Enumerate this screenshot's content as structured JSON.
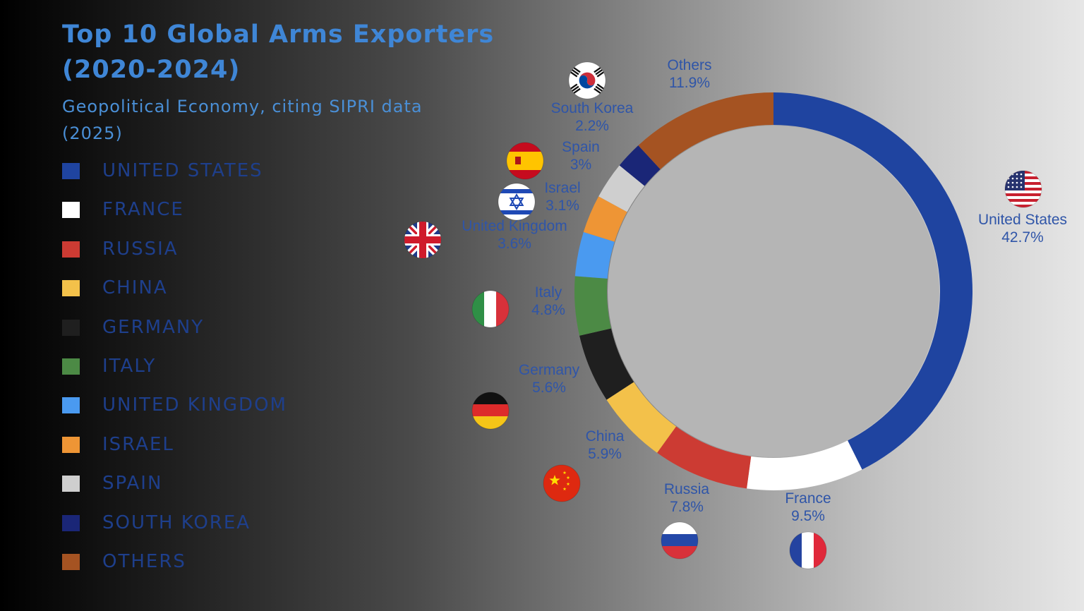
{
  "title": "Top 10 Global Arms Exporters\n(2020-2024)",
  "subtitle": "Geopolitical Economy, citing SIPRI data (2025)",
  "legend": [
    {
      "label": "UNITED STATES",
      "color": "#1f44a0"
    },
    {
      "label": "FRANCE",
      "color": "#ffffff"
    },
    {
      "label": "RUSSIA",
      "color": "#cc3b33"
    },
    {
      "label": "CHINA",
      "color": "#f3c14a"
    },
    {
      "label": "GERMANY",
      "color": "#1f1f1f"
    },
    {
      "label": "ITALY",
      "color": "#4c8a45"
    },
    {
      "label": "UNITED KINGDOM",
      "color": "#4a9af0"
    },
    {
      "label": "ISRAEL",
      "color": "#ee9535"
    },
    {
      "label": "SPAIN",
      "color": "#cfcfcf"
    },
    {
      "label": "SOUTH KOREA",
      "color": "#1a2677"
    },
    {
      "label": "OTHERS",
      "color": "#a55322"
    }
  ],
  "chart_data": {
    "type": "pie",
    "donut": true,
    "title": "Top 10 Global Arms Exporters (2020-2024)",
    "subtitle": "Geopolitical Economy, citing SIPRI data (2025)",
    "unit": "%",
    "legend_position": "left",
    "slices": [
      {
        "label": "United States",
        "value": 42.7,
        "value_label": "42.7%",
        "color": "#1f44a0",
        "flag": "us-flag-icon"
      },
      {
        "label": "France",
        "value": 9.5,
        "value_label": "9.5%",
        "color": "#ffffff",
        "flag": "france-flag-icon"
      },
      {
        "label": "Russia",
        "value": 7.8,
        "value_label": "7.8%",
        "color": "#cc3b33",
        "flag": "russia-flag-icon"
      },
      {
        "label": "China",
        "value": 5.9,
        "value_label": "5.9%",
        "color": "#f3c14a",
        "flag": "china-flag-icon"
      },
      {
        "label": "Germany",
        "value": 5.6,
        "value_label": "5.6%",
        "color": "#1f1f1f",
        "flag": "germany-flag-icon"
      },
      {
        "label": "Italy",
        "value": 4.8,
        "value_label": "4.8%",
        "color": "#4c8a45",
        "flag": "italy-flag-icon"
      },
      {
        "label": "United Kingdom",
        "value": 3.6,
        "value_label": "3.6%",
        "color": "#4a9af0",
        "flag": "uk-flag-icon"
      },
      {
        "label": "Israel",
        "value": 3.1,
        "value_label": "3.1%",
        "color": "#ee9535",
        "flag": "israel-flag-icon"
      },
      {
        "label": "Spain",
        "value": 3,
        "value_label": "3%",
        "color": "#cfcfcf",
        "flag": "spain-flag-icon"
      },
      {
        "label": "South Korea",
        "value": 2.2,
        "value_label": "2.2%",
        "color": "#1a2677",
        "flag": "south-korea-flag-icon"
      },
      {
        "label": "Others",
        "value": 11.9,
        "value_label": "11.9%",
        "color": "#a55322",
        "flag": ""
      }
    ]
  }
}
